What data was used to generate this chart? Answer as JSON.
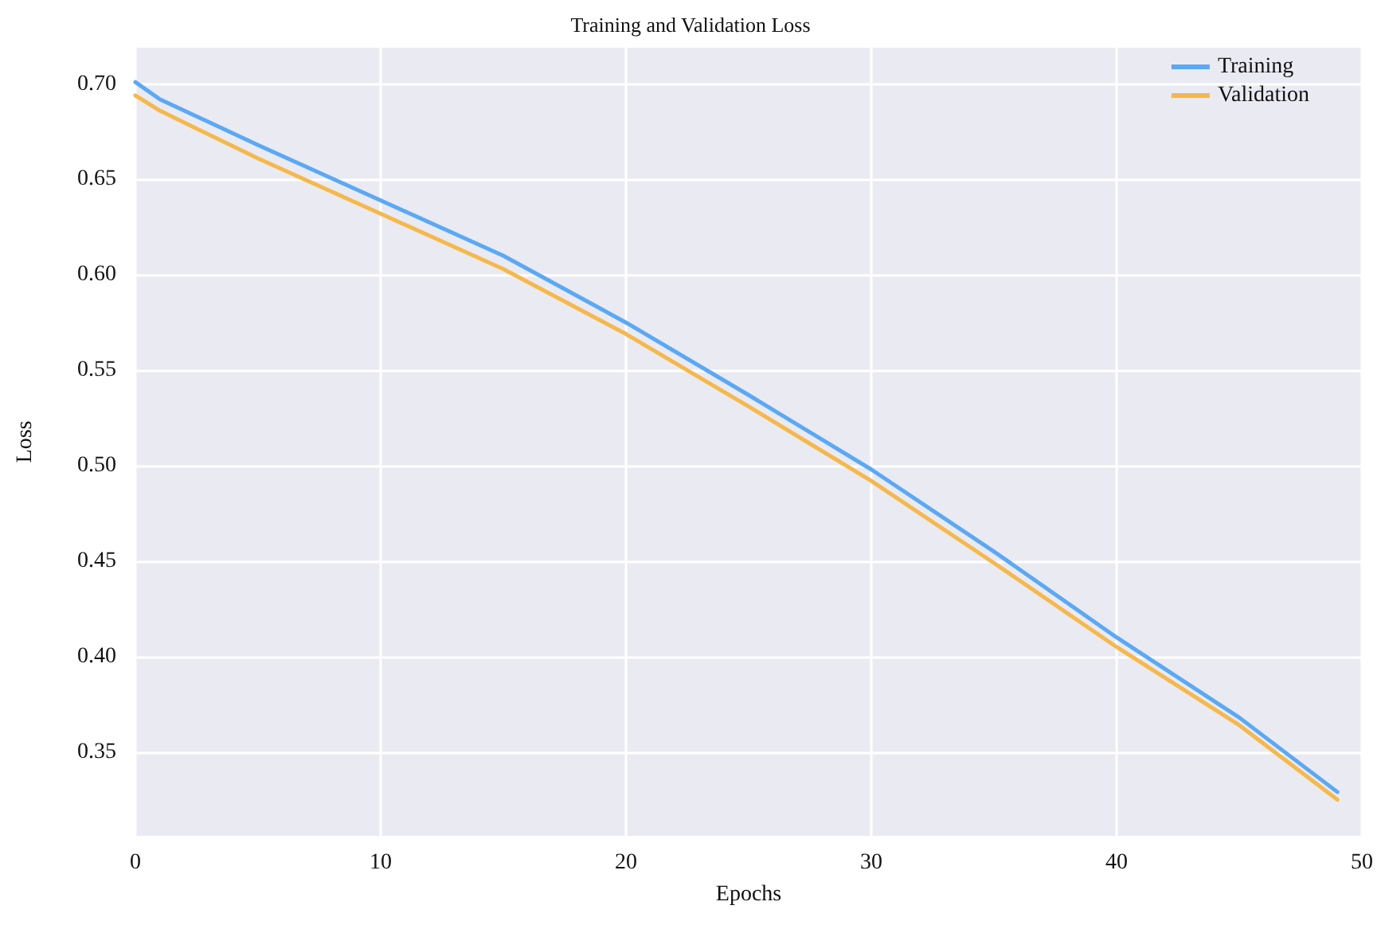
{
  "chart_data": {
    "type": "line",
    "title": "Training and Validation Loss",
    "xlabel": "Epochs",
    "ylabel": "Loss",
    "x": [
      0,
      1,
      5,
      10,
      15,
      20,
      25,
      30,
      35,
      40,
      45,
      49
    ],
    "series": [
      {
        "name": "Training",
        "color": "#5aa9f5",
        "values": [
          0.701,
          0.692,
          0.668,
          0.639,
          0.61,
          0.575,
          0.537,
          0.498,
          0.455,
          0.41,
          0.368,
          0.329
        ]
      },
      {
        "name": "Validation",
        "color": "#f5b84a",
        "values": [
          0.694,
          0.686,
          0.661,
          0.632,
          0.603,
          0.569,
          0.531,
          0.492,
          0.449,
          0.405,
          0.364,
          0.325
        ]
      }
    ],
    "xlim": [
      0,
      50
    ],
    "xticks": [
      0,
      10,
      20,
      30,
      40,
      50
    ],
    "ylim": [
      0.306,
      0.719
    ],
    "yticks": [
      {
        "value": 0.35,
        "label": "0.35"
      },
      {
        "value": 0.4,
        "label": "0.40"
      },
      {
        "value": 0.45,
        "label": "0.45"
      },
      {
        "value": 0.5,
        "label": "0.50"
      },
      {
        "value": 0.55,
        "label": "0.55"
      },
      {
        "value": 0.6,
        "label": "0.60"
      },
      {
        "value": 0.65,
        "label": "0.65"
      },
      {
        "value": 0.7,
        "label": "0.70"
      }
    ],
    "grid": true,
    "legend": "top right",
    "marker": "none",
    "line_style": "solid"
  }
}
